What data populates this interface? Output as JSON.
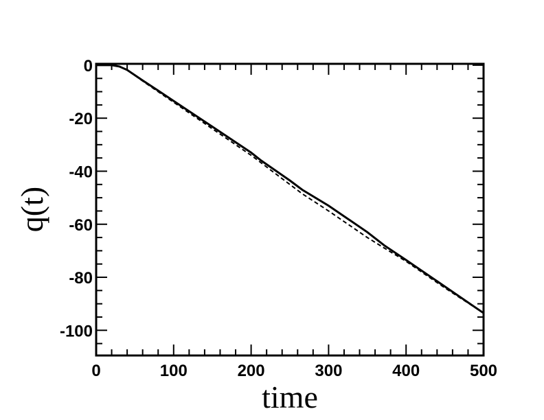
{
  "chart_data": {
    "type": "line",
    "title": "",
    "xlabel": "time",
    "ylabel": "q(t)",
    "xlim": [
      0,
      500
    ],
    "ylim": [
      -109.5,
      0.5
    ],
    "grid": false,
    "legend": null,
    "x_ticks": [
      0,
      100,
      200,
      300,
      400,
      500
    ],
    "x_tick_labels": [
      "0",
      "100",
      "200",
      "300",
      "400",
      "500"
    ],
    "x_minor_step": 20,
    "y_ticks": [
      0,
      -20,
      -40,
      -60,
      -80,
      -100
    ],
    "y_tick_labels": [
      "0",
      "-20",
      "-40",
      "-60",
      "-80",
      "-100"
    ],
    "y_minor_step": 5,
    "series": [
      {
        "name": "solid",
        "style": "solid",
        "color": "#000000",
        "x": [
          0,
          20,
          30,
          40,
          60,
          80,
          100,
          150,
          200,
          213,
          250,
          266,
          300,
          350,
          372,
          400,
          450,
          500
        ],
        "y": [
          0,
          0,
          -0.5,
          -1.8,
          -5.8,
          -9.6,
          -13.5,
          -23.2,
          -33.0,
          -36.0,
          -43.5,
          -47.0,
          -53.0,
          -63.0,
          -68.0,
          -73.5,
          -83.5,
          -93.5
        ]
      },
      {
        "name": "dashed",
        "style": "dashed",
        "color": "#000000",
        "x": [
          0,
          20,
          30,
          40,
          60,
          80,
          100,
          150,
          200,
          250,
          266,
          300,
          350,
          372,
          400,
          450,
          500
        ],
        "y": [
          0,
          0,
          -0.5,
          -1.8,
          -6.0,
          -10.0,
          -14.0,
          -24.0,
          -34.0,
          -45.0,
          -48.5,
          -55.0,
          -65.0,
          -69.0,
          -74.0,
          -84.0,
          -93.5
        ]
      }
    ]
  }
}
